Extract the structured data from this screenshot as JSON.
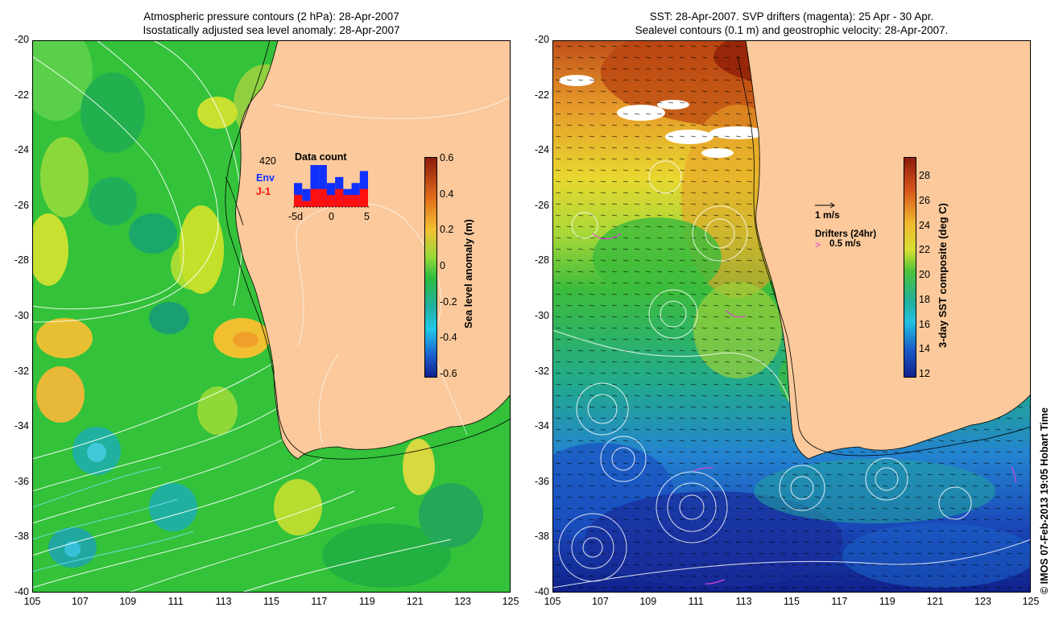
{
  "left": {
    "title_line1": "Atmospheric pressure contours (2 hPa): 28-Apr-2007",
    "title_line2": "Isostatically adjusted sea level anomaly: 28-Apr-2007",
    "colorbar_label": "Sea level anomaly (m)",
    "colorbar_ticks": [
      "0.6",
      "0.4",
      "0.2",
      "0",
      "-0.2",
      "-0.4",
      "-0.6"
    ],
    "data_count": {
      "title": "Data count",
      "total": "420",
      "env_label": "Env",
      "j1_label": "J-1",
      "x_tick_left": "-5d",
      "x_tick_mid": "0",
      "x_tick_right": "5",
      "env_counts": [
        4,
        3,
        7,
        7,
        4,
        5,
        3,
        4,
        6
      ],
      "j1_counts": [
        2,
        1,
        3,
        3,
        2,
        3,
        2,
        2,
        3
      ]
    }
  },
  "right": {
    "title_line1": "SST: 28-Apr-2007. SVP drifters (magenta): 25 Apr - 30 Apr.",
    "title_line2": "Sealevel contours (0.1 m) and geostrophic velocity: 28-Apr-2007.",
    "colorbar_label": "3-day SST composite (deg C)",
    "colorbar_ticks": [
      "28",
      "26",
      "24",
      "22",
      "20",
      "18",
      "16",
      "14",
      "12"
    ],
    "vector_scale_label": "1 m/s",
    "drifters_title": "Drifters (24hr)",
    "drifters_scale_label": "0.5 m/s",
    "drifter_symbol": ">"
  },
  "lat_ticks": [
    "-20",
    "-22",
    "-24",
    "-26",
    "-28",
    "-30",
    "-32",
    "-34",
    "-36",
    "-38",
    "-40"
  ],
  "lon_ticks": [
    "105",
    "107",
    "109",
    "111",
    "113",
    "115",
    "117",
    "119",
    "121",
    "123",
    "125"
  ],
  "credit": "© IMOS 07-Feb-2013 19:05 Hobart Time",
  "colors": {
    "land": "#fbc99b",
    "ocean_green": "#2ec23c",
    "sst_warm": "#b53a10",
    "sst_cold": "#1a3fb5",
    "drifters": "#e040e0",
    "env_bar": "#1030ff",
    "j1_bar": "#ff1010"
  }
}
